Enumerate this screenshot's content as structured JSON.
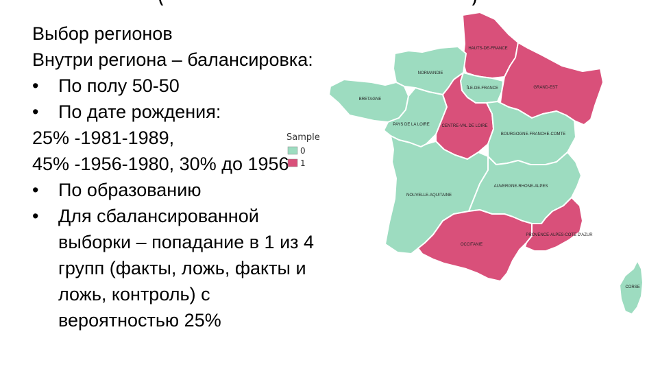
{
  "slide": {
    "heading_fragment": "(",
    "lines": [
      "Выбор регионов",
      "Внутри региона – балансировка:"
    ],
    "bullets_a": [
      "По полу 50-50",
      "По дате рождения:"
    ],
    "age_lines": [
      "25% -1981-1989,",
      "45% -1956-1980, 30% до 1956"
    ],
    "bullet_c": "По образованию",
    "bullet_d_lines": [
      "Для сбалансированной",
      "выборки – попадание в 1 из 4",
      "групп (факты, ложь, факты и",
      "ложь, контроль) с",
      "вероятностью 25%"
    ],
    "bullet_symbol": "•"
  },
  "map": {
    "colors": {
      "sample_0": "#9ddcc0",
      "sample_1": "#d9507a",
      "border": "#ffffff"
    },
    "legend": {
      "title": "Sample",
      "items": [
        {
          "label": "0",
          "color": "#9ddcc0"
        },
        {
          "label": "1",
          "color": "#d9507a"
        }
      ]
    },
    "regions": [
      {
        "key": "hauts",
        "name": "HAUTS-DE-FRANCE",
        "sample": 1
      },
      {
        "key": "normandie",
        "name": "NORMANDIE",
        "sample": 0
      },
      {
        "key": "idf",
        "name": "ÎLE-DE-FRANCE",
        "sample": 0
      },
      {
        "key": "grandest",
        "name": "GRAND-EST",
        "sample": 1
      },
      {
        "key": "bretagne",
        "name": "BRETAGNE",
        "sample": 0
      },
      {
        "key": "pdl",
        "name": "PAYS DE LA LOIRE",
        "sample": 0
      },
      {
        "key": "cvl",
        "name": "CENTRE-VAL DE LOIRE",
        "sample": 1
      },
      {
        "key": "bfc",
        "name": "BOURGOGNE-FRANCHE-COMTE",
        "sample": 0
      },
      {
        "key": "na",
        "name": "NOUVELLE-AQUITAINE",
        "sample": 0
      },
      {
        "key": "ara",
        "name": "AUVERGNE-RHONE-ALPES",
        "sample": 0
      },
      {
        "key": "occ",
        "name": "OCCITANIE",
        "sample": 1
      },
      {
        "key": "paca",
        "name": "PROVENCE-ALPES-COTE D'AZUR",
        "sample": 1
      },
      {
        "key": "corse",
        "name": "CORSE",
        "sample": 0
      }
    ]
  }
}
